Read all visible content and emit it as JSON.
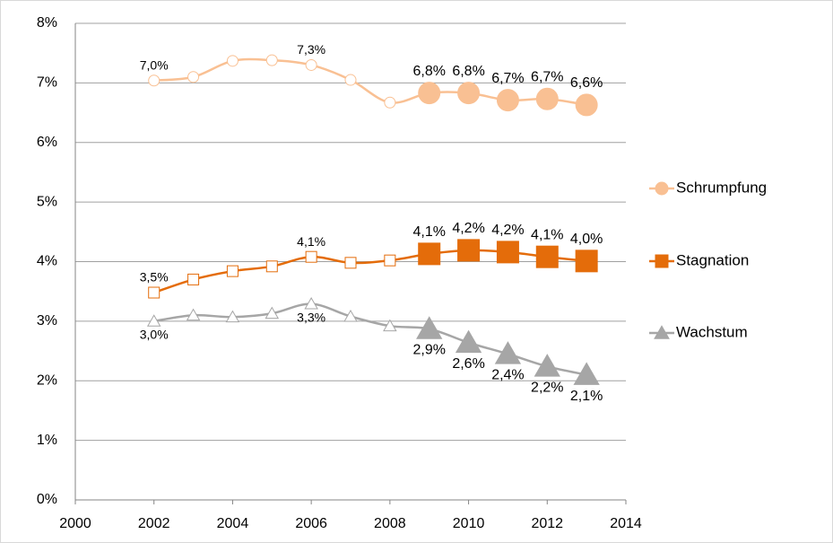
{
  "chart_data": {
    "type": "line",
    "x": [
      2002,
      2003,
      2004,
      2005,
      2006,
      2007,
      2008,
      2009,
      2010,
      2011,
      2012,
      2013
    ],
    "markers_filled": [
      false,
      false,
      false,
      false,
      false,
      false,
      false,
      true,
      true,
      true,
      true,
      true
    ],
    "series": [
      {
        "name": "Schrumpfung",
        "color": "#f9c093",
        "marker": "circle",
        "label_position": "above",
        "values": [
          7.04,
          7.1,
          7.37,
          7.38,
          7.3,
          7.05,
          6.67,
          6.83,
          6.83,
          6.71,
          6.73,
          6.63
        ],
        "value_labels": [
          "7,0%",
          null,
          null,
          null,
          "7,3%",
          null,
          null,
          "6,8%",
          "6,8%",
          "6,7%",
          "6,7%",
          "6,6%"
        ]
      },
      {
        "name": "Stagnation",
        "color": "#e46c0a",
        "marker": "square",
        "label_position": "above",
        "values": [
          3.48,
          3.7,
          3.84,
          3.92,
          4.08,
          3.98,
          4.02,
          4.13,
          4.19,
          4.16,
          4.08,
          4.01
        ],
        "value_labels": [
          "3,5%",
          null,
          null,
          null,
          "4,1%",
          null,
          null,
          "4,1%",
          "4,2%",
          "4,2%",
          "4,1%",
          "4,0%"
        ]
      },
      {
        "name": "Wachstum",
        "color": "#a6a6a6",
        "marker": "triangle",
        "label_position": "below",
        "values": [
          3.0,
          3.1,
          3.07,
          3.13,
          3.29,
          3.08,
          2.92,
          2.87,
          2.64,
          2.45,
          2.24,
          2.1
        ],
        "value_labels": [
          "3,0%",
          null,
          null,
          null,
          "3,3%",
          null,
          null,
          "2,9%",
          "2,6%",
          "2,4%",
          "2,2%",
          "2,1%"
        ]
      }
    ],
    "xlim": [
      2000,
      2014
    ],
    "xticks": [
      2000,
      2002,
      2004,
      2006,
      2008,
      2010,
      2012,
      2014
    ],
    "ylim": [
      0,
      8
    ],
    "yticks": [
      {
        "value": 0,
        "label": "0%"
      },
      {
        "value": 1,
        "label": "1%"
      },
      {
        "value": 2,
        "label": "2%"
      },
      {
        "value": 3,
        "label": "3%"
      },
      {
        "value": 4,
        "label": "4%"
      },
      {
        "value": 5,
        "label": "5%"
      },
      {
        "value": 6,
        "label": "6%"
      },
      {
        "value": 7,
        "label": "7%"
      },
      {
        "value": 8,
        "label": "8%"
      }
    ],
    "grid": true,
    "legend": "right"
  }
}
